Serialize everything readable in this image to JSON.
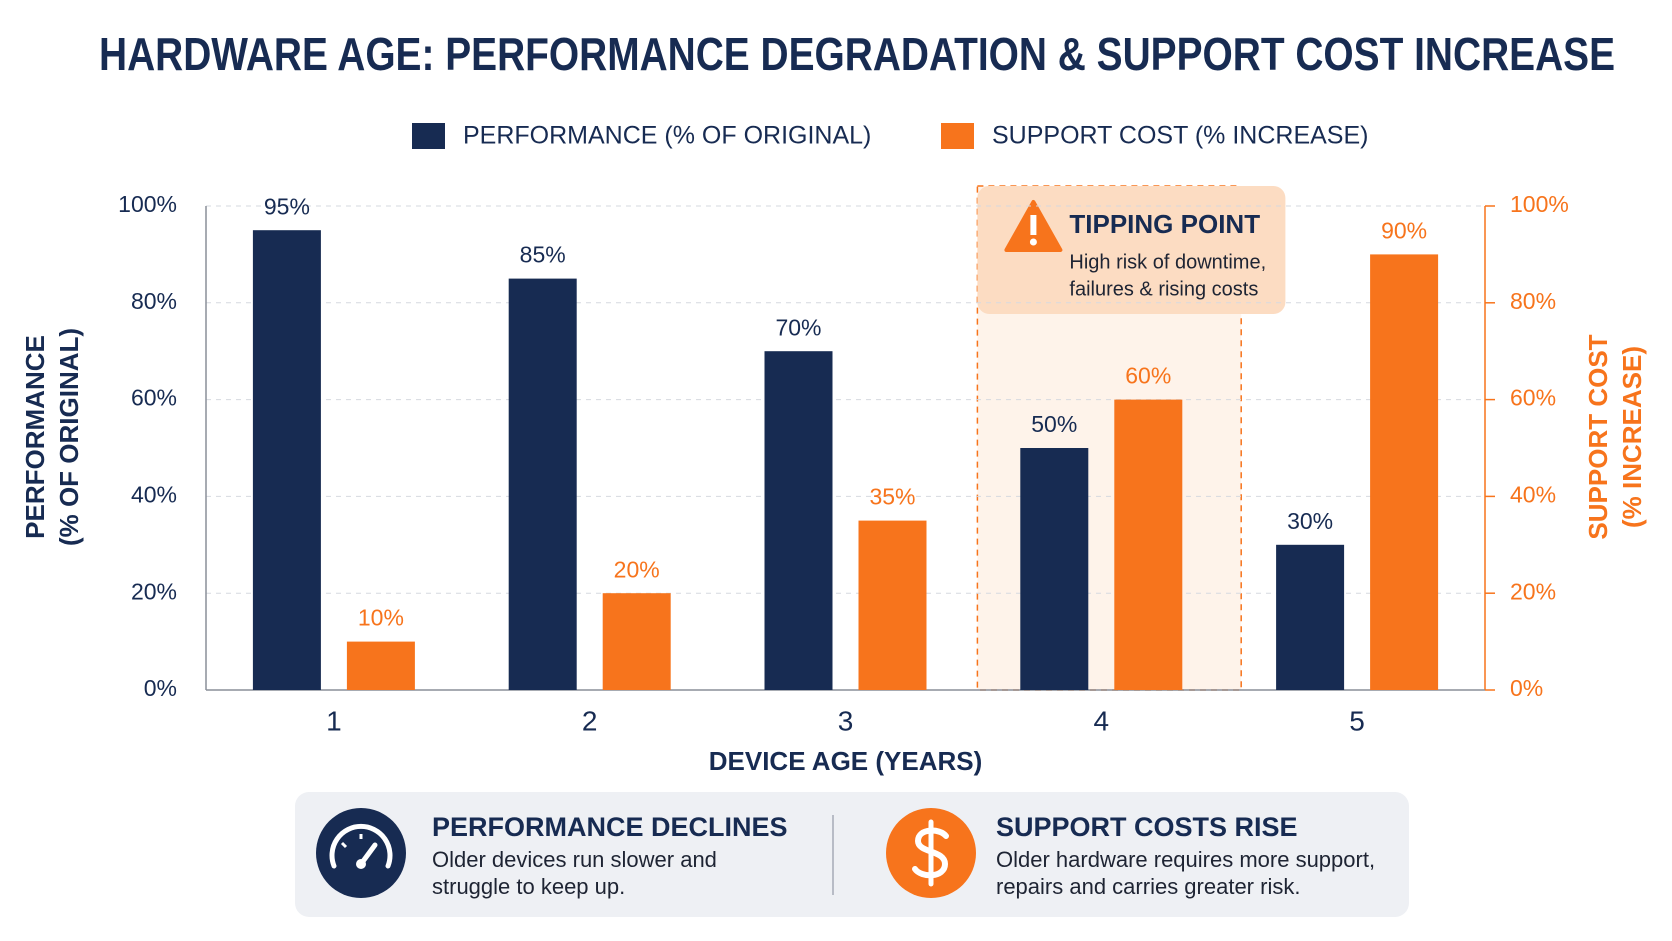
{
  "chart_data": {
    "type": "bar",
    "title": "HARDWARE AGE: PERFORMANCE DEGRADATION & SUPPORT COST INCREASE",
    "xlabel": "DEVICE AGE (YEARS)",
    "ylabel": [
      "PERFORMANCE",
      "(% OF ORIGINAL)"
    ],
    "y2label": [
      "SUPPORT COST",
      "(% INCREASE)"
    ],
    "categories": [
      "1",
      "2",
      "3",
      "4",
      "5"
    ],
    "series": [
      {
        "name": "PERFORMANCE (% OF ORIGINAL)",
        "color": "#172b52",
        "values": [
          95,
          85,
          70,
          50,
          30
        ],
        "value_labels": [
          "95%",
          "85%",
          "70%",
          "50%",
          "30%"
        ]
      },
      {
        "name": "SUPPORT COST (% INCREASE)",
        "color": "#f7741c",
        "axis": "y2",
        "values": [
          10,
          20,
          35,
          60,
          90
        ],
        "value_labels": [
          "10%",
          "20%",
          "35%",
          "60%",
          "90%"
        ]
      }
    ],
    "ylim": [
      0,
      100
    ],
    "yticks": [
      {
        "value": 0,
        "label": "0%"
      },
      {
        "value": 20,
        "label": "20%"
      },
      {
        "value": 40,
        "label": "40%"
      },
      {
        "value": 60,
        "label": "60%"
      },
      {
        "value": 80,
        "label": "80%"
      },
      {
        "value": 100,
        "label": "100%"
      }
    ],
    "y2lim": [
      0,
      100
    ],
    "y2ticks": [
      {
        "value": 0,
        "label": "0%"
      },
      {
        "value": 20,
        "label": "20%"
      },
      {
        "value": 40,
        "label": "40%"
      },
      {
        "value": 60,
        "label": "60%"
      },
      {
        "value": 80,
        "label": "80%"
      },
      {
        "value": 100,
        "label": "100%"
      }
    ],
    "grid": true,
    "legend": "top",
    "highlight_category": "4",
    "annotation": {
      "title": "TIPPING POINT",
      "text": [
        "High risk of downtime,",
        "failures & rising costs"
      ]
    }
  },
  "footer": [
    {
      "title": "PERFORMANCE DECLINES",
      "text": [
        "Older devices run slower and",
        "struggle to keep up."
      ]
    },
    {
      "title": "SUPPORT COSTS RISE",
      "text": [
        "Older hardware requires more support,",
        "repairs and carries greater risk."
      ]
    }
  ]
}
